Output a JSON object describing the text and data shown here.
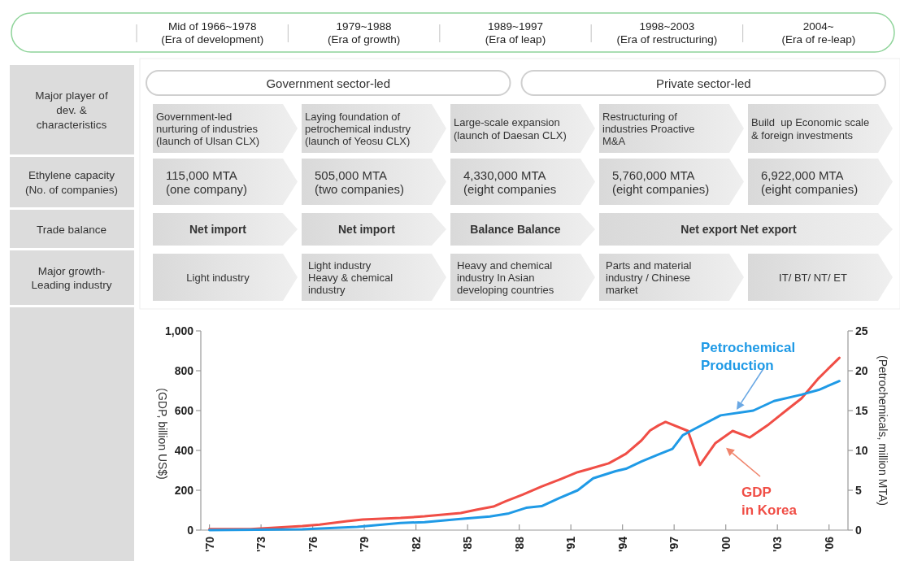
{
  "chart_data": [
    {
      "type": "other",
      "categories": [
        "Mid of 1966~1978\n(Era of development)",
        "1979~1988\n(Era of growth)",
        "1989~1997\n(Era of leap)",
        "1998~2003\n(Era of restructuring)",
        "2004~\n(Era of re-leap)"
      ],
      "y_categories": [
        "Major player of\ndev. &\ncharacteristics",
        "Ethylene capacity\n(No. of companies)",
        "Trade balance",
        "Major growth-\nLeading industry"
      ],
      "annotations": [
        "Government sector-led",
        "Private sector-led"
      ],
      "cell_labels": [
        [
          "Government-led\nnurturing of industries\n(launch of Ulsan CLX)",
          "Laying foundation of\npetrochemical industry\n(launch of Yeosu CLX)",
          "Large-scale expansion\n(launch of Daesan CLX)",
          "Restructuring of\nindustries Proactive\nM&A",
          "Build  up Economic scale\n& foreign investments"
        ],
        [
          "115,000 MTA\n(one company)",
          "505,000 MTA\n(two companies)",
          "4,330,000 MTA\n(eight companies",
          "5,760,000 MTA\n(eight companies)",
          "6,922,000 MTA\n(eight companies)"
        ],
        [
          "Net import",
          "Net import",
          "Balance Balance",
          "Net export Net export",
          null
        ],
        [
          "Light industry",
          "Light industry\nHeavy & chemical\nindustry",
          "Heavy and chemical\nindustry In Asian\ndeveloping countries",
          "Parts and material\nindustry / Chinese\nmarket",
          "IT/ BT/ NT/ ET"
        ]
      ]
    },
    {
      "type": "line",
      "ylabel": "(GDP, billion US$)",
      "y2label": "(Petrochemicals, million MTA)",
      "xlim": [
        1969.5,
        2007.1
      ],
      "xticks": [
        {
          "value": 1970,
          "label": "'70"
        },
        {
          "value": 1973,
          "label": "'73"
        },
        {
          "value": 1976,
          "label": "'76"
        },
        {
          "value": 1979,
          "label": "'79"
        },
        {
          "value": 1982,
          "label": "'82"
        },
        {
          "value": 1985,
          "label": "'85"
        },
        {
          "value": 1988,
          "label": "'88"
        },
        {
          "value": 1991,
          "label": "'91"
        },
        {
          "value": 1994,
          "label": "'94"
        },
        {
          "value": 1997,
          "label": "'97"
        },
        {
          "value": 2000,
          "label": "'00"
        },
        {
          "value": 2003,
          "label": "'03"
        },
        {
          "value": 2006,
          "label": "'06"
        }
      ],
      "ylim": [
        0,
        1000
      ],
      "yticks": [
        0,
        200,
        400,
        600,
        800,
        {
          "value": 1000,
          "label": "1,000"
        }
      ],
      "y2lim": [
        0,
        25
      ],
      "y2ticks": [
        0,
        5,
        10,
        15,
        20,
        25
      ],
      "series": [
        {
          "name": "GDP\nin Korea",
          "color": "#f04e46",
          "x": [
            1970,
            1972.4,
            1975.4,
            1976.4,
            1978,
            1978.9,
            1981.1,
            1982.5,
            1984.6,
            1985.5,
            1986.5,
            1987.2,
            1988.2,
            1989.3,
            1990.4,
            1991.4,
            1992,
            1993.2,
            1994.2,
            1995.1,
            1995.6,
            1996.1,
            1996.5,
            1997.8,
            1998.5,
            1999.4,
            2000.4,
            2001.4,
            2002.5,
            2003.5,
            2004.4,
            2005.4,
            2006.6
          ],
          "values": [
            5,
            5,
            20,
            28,
            45,
            53,
            61,
            69,
            86,
            102,
            118,
            144,
            178,
            219,
            256,
            291,
            305,
            335,
            383,
            450,
            500,
            526,
            543,
            498,
            327,
            437,
            498,
            465,
            531,
            600,
            661,
            763,
            865
          ]
        },
        {
          "name": "Petrochemical\nProduction",
          "color": "#1f9ae6",
          "axis": "y2",
          "x": [
            1970,
            1975.4,
            1978.6,
            1981.1,
            1982.5,
            1984.6,
            1986.3,
            1987.4,
            1988.4,
            1989.3,
            1990.3,
            1991.4,
            1992.3,
            1993.6,
            1994.2,
            1995.1,
            1996.1,
            1996.9,
            1997.5,
            1998.1,
            1999.7,
            2001.6,
            2002.8,
            2004.4,
            2005.4,
            2006.6
          ],
          "values": [
            0,
            0.1,
            0.4,
            0.9,
            1,
            1.4,
            1.7,
            2.1,
            2.8,
            3,
            4,
            5,
            6.5,
            7.4,
            7.7,
            8.6,
            9.5,
            10.2,
            11.9,
            12.6,
            14.4,
            15,
            16.2,
            17,
            17.6,
            18.7
          ]
        }
      ]
    }
  ]
}
